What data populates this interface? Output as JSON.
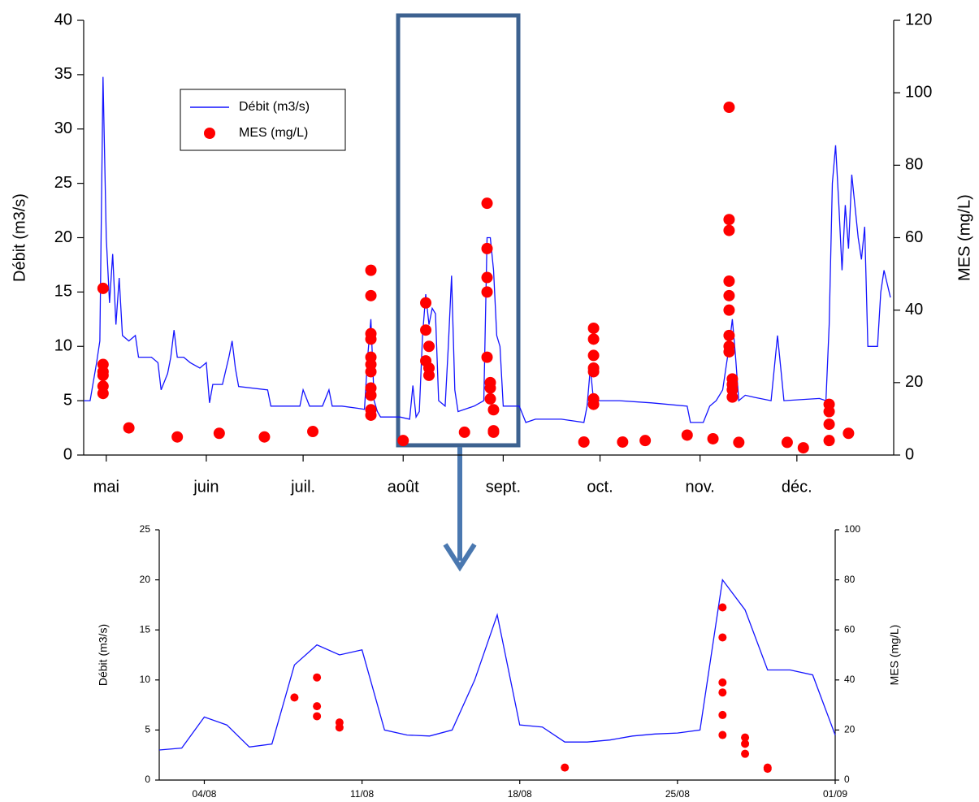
{
  "chart_data": [
    {
      "type": "line",
      "ylabel": "Débit (m3/s)",
      "y2label": "MES (mg/L)",
      "xlim": [
        "24/04",
        "31/12"
      ],
      "xticks": [
        {
          "value": "01/05",
          "label": "mai"
        },
        {
          "value": "01/06",
          "label": "juin"
        },
        {
          "value": "01/07",
          "label": "juil."
        },
        {
          "value": "01/08",
          "label": "août"
        },
        {
          "value": "01/09",
          "label": "sept."
        },
        {
          "value": "01/10",
          "label": "oct."
        },
        {
          "value": "01/11",
          "label": "nov."
        },
        {
          "value": "01/12",
          "label": "déc."
        }
      ],
      "ylim": [
        0,
        40
      ],
      "yticks": [
        0,
        5,
        10,
        15,
        20,
        25,
        30,
        35,
        40
      ],
      "y2lim": [
        0,
        120
      ],
      "y2ticks": [
        0,
        20,
        40,
        60,
        80,
        100,
        120
      ],
      "legend": "upper left",
      "series": [
        {
          "name": "Débit (m3/s)",
          "type": "line",
          "color": "#1414ff",
          "x": [
            "24/04",
            "26/04",
            "28/04",
            "29/04",
            "30/04",
            "01/05",
            "02/05",
            "03/05",
            "04/05",
            "05/05",
            "06/05",
            "08/05",
            "10/05",
            "11/05",
            "15/05",
            "17/05",
            "18/05",
            "20/05",
            "21/05",
            "22/05",
            "23/05",
            "25/05",
            "27/05",
            "30/05",
            "01/06",
            "02/06",
            "03/06",
            "06/06",
            "08/06",
            "09/06",
            "10/06",
            "11/06",
            "20/06",
            "21/06",
            "30/06",
            "01/07",
            "03/07",
            "07/07",
            "09/07",
            "10/07",
            "13/07",
            "18/07",
            "20/07",
            "21/07",
            "22/07",
            "23/07",
            "24/07",
            "25/07",
            "31/07",
            "03/08",
            "04/08",
            "05/08",
            "06/08",
            "07/08",
            "08/08",
            "09/08",
            "10/08",
            "11/08",
            "12/08",
            "14/08",
            "15/08",
            "16/08",
            "17/08",
            "18/08",
            "23/08",
            "26/08",
            "27/08",
            "28/08",
            "29/08",
            "30/08",
            "31/08",
            "01/09",
            "04/09",
            "06/09",
            "08/09",
            "11/09",
            "19/09",
            "26/09",
            "27/09",
            "28/09",
            "29/09",
            "07/10",
            "17/10",
            "28/10",
            "29/10",
            "02/11",
            "04/11",
            "06/11",
            "08/11",
            "10/11",
            "11/11",
            "12/11",
            "13/11",
            "15/11",
            "18/11",
            "23/11",
            "25/11",
            "26/11",
            "27/11",
            "08/12",
            "10/12",
            "11/12",
            "12/12",
            "13/12",
            "14/12",
            "15/12",
            "16/12",
            "17/12",
            "18/12",
            "20/12",
            "21/12",
            "22/12",
            "23/12",
            "26/12",
            "27/12",
            "28/12",
            "30/12"
          ],
          "values": [
            5,
            5,
            8.5,
            10.5,
            34.8,
            20,
            14,
            18.5,
            12,
            16.3,
            11,
            10.5,
            11,
            9,
            9,
            8.5,
            6,
            7.5,
            9,
            11.5,
            9,
            9,
            8.5,
            8,
            8.5,
            4.8,
            6.5,
            6.5,
            9,
            10.5,
            8,
            6.3,
            6,
            4.5,
            4.5,
            6,
            4.5,
            4.5,
            6,
            4.5,
            4.5,
            4.3,
            4.2,
            9,
            12.5,
            5,
            4,
            3.5,
            3.5,
            3.3,
            6.4,
            3.5,
            4,
            11,
            14.8,
            12,
            13.5,
            13,
            5,
            4.5,
            10,
            16.5,
            6,
            4,
            4.5,
            5,
            20,
            20,
            17,
            11,
            10,
            4.5,
            4.5,
            4.5,
            3,
            3.3,
            3.3,
            3,
            4.5,
            8,
            5,
            5,
            4.8,
            4.5,
            3,
            3,
            4.5,
            5,
            6,
            10,
            12.5,
            9,
            5,
            5.5,
            5.3,
            5,
            11,
            8,
            5,
            5.2,
            5,
            12,
            25,
            28.5,
            23,
            17,
            23,
            19,
            25.8,
            20,
            18,
            21,
            10,
            10,
            15,
            17,
            14.5
          ]
        },
        {
          "name": "MES (mg/L)",
          "type": "scatter",
          "axis": "y2",
          "color": "#ff0000",
          "x": [
            "30/04",
            "30/04",
            "30/04",
            "30/04",
            "30/04",
            "30/04",
            "08/05",
            "23/05",
            "05/06",
            "19/06",
            "04/07",
            "22/07",
            "22/07",
            "22/07",
            "22/07",
            "22/07",
            "22/07",
            "22/07",
            "22/07",
            "22/07",
            "22/07",
            "22/07",
            "01/08",
            "08/08",
            "08/08",
            "08/08",
            "09/08",
            "09/08",
            "09/08",
            "20/08",
            "27/08",
            "27/08",
            "27/08",
            "27/08",
            "27/08",
            "28/08",
            "28/08",
            "28/08",
            "29/08",
            "29/08",
            "29/08",
            "26/09",
            "29/09",
            "29/09",
            "29/09",
            "29/09",
            "29/09",
            "29/09",
            "29/09",
            "08/10",
            "15/10",
            "28/10",
            "05/11",
            "10/11",
            "10/11",
            "10/11",
            "10/11",
            "10/11",
            "10/11",
            "10/11",
            "10/11",
            "10/11",
            "11/11",
            "11/11",
            "11/11",
            "11/11",
            "13/11",
            "28/11",
            "03/12",
            "11/12",
            "11/12",
            "11/12",
            "11/12",
            "17/12"
          ],
          "values": [
            46,
            25,
            23,
            22,
            19,
            17,
            7.5,
            5,
            6,
            5,
            6.5,
            51,
            44,
            33.5,
            32,
            27,
            25,
            23,
            18.5,
            16.5,
            12.5,
            11,
            4,
            42,
            34.5,
            26,
            30,
            24,
            22,
            6.3,
            69.5,
            57,
            49,
            45,
            27,
            20,
            18.5,
            15.5,
            12.5,
            6.3,
            6.7,
            3.6,
            35,
            32,
            27.5,
            24,
            23,
            15.5,
            14,
            3.6,
            4,
            5.5,
            4.5,
            96,
            65,
            62,
            48,
            44,
            40,
            33,
            30,
            28.5,
            21,
            19.5,
            18,
            16,
            3.5,
            3.5,
            2,
            14,
            12,
            8.5,
            4,
            6
          ]
        }
      ]
    },
    {
      "type": "line",
      "ylabel": "Débit (m3/s)",
      "y2label": "MES (mg/L)",
      "xlim": [
        "02/08",
        "01/09"
      ],
      "xticks": [
        "04/08",
        "11/08",
        "18/08",
        "25/08",
        "01/09"
      ],
      "ylim": [
        0,
        25
      ],
      "yticks": [
        0,
        5,
        10,
        15,
        20,
        25
      ],
      "y2lim": [
        0,
        100
      ],
      "y2ticks": [
        0,
        20,
        40,
        60,
        80,
        100
      ],
      "series": [
        {
          "name": "Débit (m3/s)",
          "type": "line",
          "color": "#1414ff",
          "x": [
            "02/08",
            "03/08",
            "04/08",
            "05/08",
            "06/08",
            "07/08",
            "08/08",
            "09/08",
            "10/08",
            "11/08",
            "12/08",
            "13/08",
            "14/08",
            "15/08",
            "16/08",
            "17/08",
            "18/08",
            "19/08",
            "20/08",
            "21/08",
            "22/08",
            "23/08",
            "24/08",
            "25/08",
            "26/08",
            "27/08",
            "28/08",
            "29/08",
            "30/08",
            "31/08",
            "01/09"
          ],
          "values": [
            3,
            3.2,
            6.3,
            5.5,
            3.3,
            3.6,
            11.5,
            13.5,
            12.5,
            13,
            5,
            4.5,
            4.4,
            5,
            10,
            16.5,
            5.5,
            5.3,
            3.8,
            3.8,
            4,
            4.4,
            4.6,
            4.7,
            5,
            20,
            17,
            11,
            11,
            10.5,
            4.5
          ]
        },
        {
          "name": "MES (mg/L)",
          "type": "scatter",
          "axis": "y2",
          "color": "#ff0000",
          "x": [
            "08/08",
            "09/08",
            "09/08",
            "09/08",
            "10/08",
            "10/08",
            "20/08",
            "27/08",
            "27/08",
            "27/08",
            "27/08",
            "27/08",
            "27/08",
            "28/08",
            "28/08",
            "28/08",
            "29/08",
            "29/08"
          ],
          "values": [
            33,
            41,
            25.5,
            29.5,
            23,
            21,
            5,
            69,
            57,
            39,
            35,
            26,
            18,
            17,
            14.5,
            10.5,
            5,
            4.5
          ]
        }
      ]
    }
  ]
}
